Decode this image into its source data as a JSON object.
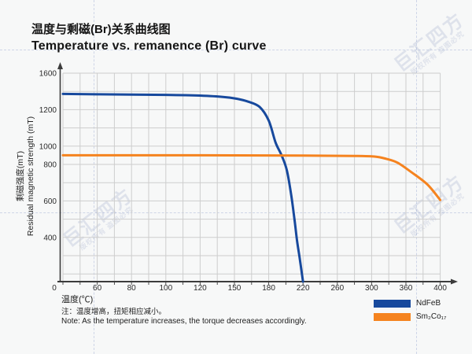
{
  "watermark": {
    "brand": "巨汇四方",
    "tagline": "版权所有 盗图必究"
  },
  "title": {
    "zh": "温度与剩磁(Br)关系曲线图",
    "en": "Temperature vs. remanence (Br) curve"
  },
  "chart_data": {
    "type": "line",
    "title": "Temperature vs. remanence (Br) curve",
    "title_zh": "温度与剩磁(Br)关系曲线图",
    "xlabel": "温度(℃)",
    "ylabel_zh": "剩磁强度(mT)",
    "ylabel_en": "Residual magnetic strength (mT)",
    "grid": true,
    "legend_position": "bottom-right",
    "x_axis": {
      "tick_labels": [
        "0",
        "60",
        "80",
        "100",
        "120",
        "150",
        "180",
        "220",
        "260",
        "300",
        "360",
        "400"
      ],
      "tick_values": [
        0,
        60,
        80,
        100,
        120,
        150,
        180,
        220,
        260,
        300,
        360,
        400
      ],
      "evenly_spaced_ticks": true
    },
    "y_axis": {
      "tick_labels": [
        "1600",
        "1200",
        "1000",
        "800",
        "600",
        "400"
      ],
      "tick_values": [
        1600,
        1200,
        1000,
        800,
        600,
        400
      ],
      "grid_rows": [
        0,
        2,
        4,
        5,
        7,
        9
      ],
      "ylim": [
        0,
        1600
      ]
    },
    "series": [
      {
        "name": "NdFeB",
        "color": "#17499d",
        "points": [
          [
            0,
            1372
          ],
          [
            60,
            1368
          ],
          [
            100,
            1362
          ],
          [
            120,
            1354
          ],
          [
            140,
            1340
          ],
          [
            152,
            1320
          ],
          [
            162,
            1288
          ],
          [
            172,
            1230
          ],
          [
            180,
            1140
          ],
          [
            188,
            1020
          ],
          [
            195,
            900
          ],
          [
            201,
            770
          ],
          [
            206,
            640
          ],
          [
            210,
            500
          ],
          [
            213,
            370
          ],
          [
            216,
            220
          ],
          [
            218,
            110
          ],
          [
            220,
            0
          ]
        ]
      },
      {
        "name": "Sm₂Co₁₇",
        "color": "#f5831f",
        "points": [
          [
            0,
            900
          ],
          [
            120,
            900
          ],
          [
            220,
            897
          ],
          [
            280,
            893
          ],
          [
            305,
            886
          ],
          [
            325,
            862
          ],
          [
            345,
            820
          ],
          [
            365,
            762
          ],
          [
            385,
            690
          ],
          [
            400,
            605
          ]
        ]
      }
    ]
  },
  "legend": {
    "items": [
      {
        "label": "NdFeB",
        "color": "#17499d"
      },
      {
        "label": "Sm₂Co₁₇",
        "color": "#f5831f"
      }
    ]
  },
  "note": {
    "zh": "注：温度增高，扭矩相应减小。",
    "en": "Note: As the temperature increases, the torque decreases accordingly."
  },
  "colors": {
    "background": "#f7f8f8",
    "grid": "#cdcdcd",
    "axis": "#3c3c3c",
    "text": "#2b2b2b",
    "ndfeb": "#17499d",
    "sm2co17": "#f5831f",
    "watermark": "#7d8cb9"
  }
}
